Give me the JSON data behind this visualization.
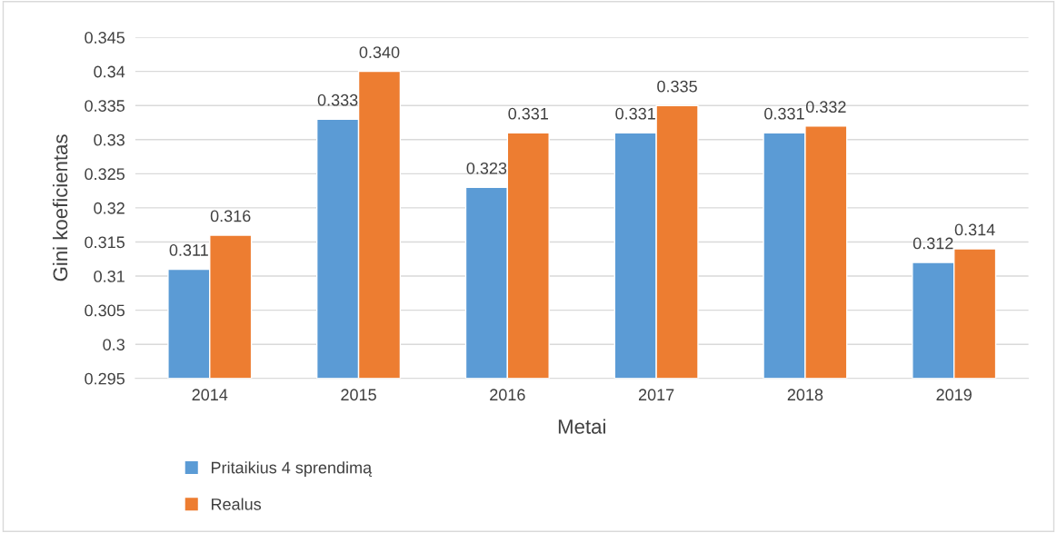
{
  "chart_data": {
    "type": "bar",
    "xlabel": "Metai",
    "ylabel": "Gini koeficientas",
    "categories": [
      "2014",
      "2015",
      "2016",
      "2017",
      "2018",
      "2019"
    ],
    "series": [
      {
        "name": "Pritaikius 4 sprendimą",
        "color": "#5b9bd5",
        "values": [
          0.311,
          0.333,
          0.323,
          0.331,
          0.331,
          0.312
        ],
        "value_labels": [
          "0.311",
          "0.333",
          "0.323",
          "0.331",
          "0.331",
          "0.312"
        ]
      },
      {
        "name": "Realus",
        "color": "#ed7d31",
        "values": [
          0.316,
          0.34,
          0.331,
          0.335,
          0.332,
          0.314
        ],
        "value_labels": [
          "0.316",
          "0.340",
          "0.331",
          "0.335",
          "0.332",
          "0.314"
        ]
      }
    ],
    "ylim": [
      0.295,
      0.345
    ],
    "yticks": [
      0.295,
      0.3,
      0.305,
      0.31,
      0.315,
      0.32,
      0.325,
      0.33,
      0.335,
      0.34,
      0.345
    ],
    "grid": "y",
    "legend": "bottom"
  }
}
